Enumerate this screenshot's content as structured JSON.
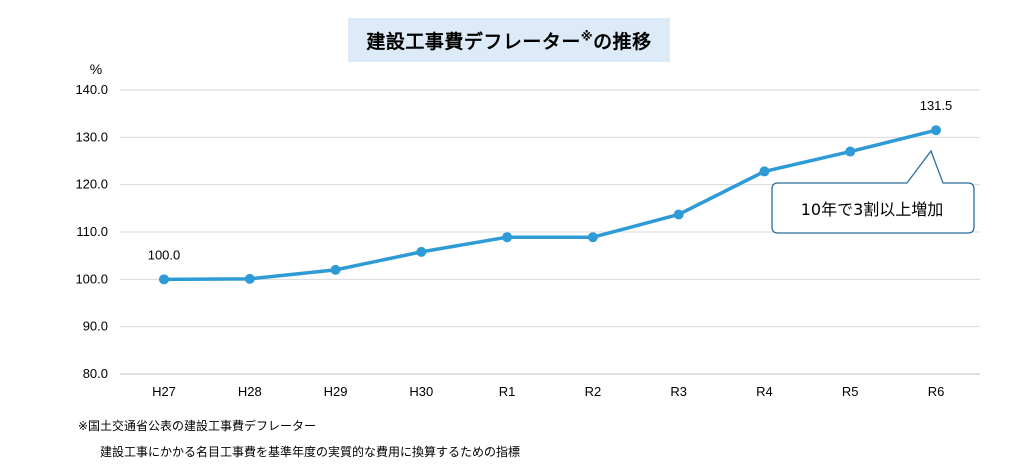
{
  "header": {
    "title_main": "建設工事費デフレーター",
    "title_mark": "※",
    "title_tail": "の推移"
  },
  "colors": {
    "line": "#2e9bd6",
    "title_bg": "#dcebf7",
    "grid": "#d9d9d9",
    "callout_border": "#2b6f9e"
  },
  "callout": {
    "text": "10年で3割以上増加"
  },
  "notes": {
    "line1": "※国土交通省公表の建設工事費デフレーター",
    "line2": "建設工事にかかる名目工事費を基準年度の実質的な費用に換算するための指標"
  },
  "chart_data": {
    "type": "line",
    "title": "建設工事費デフレーター※の推移",
    "ylabel": "%",
    "xlabel": "",
    "ylim": [
      80,
      140
    ],
    "yticks": [
      "80.0",
      "90.0",
      "100.0",
      "110.0",
      "120.0",
      "130.0",
      "140.0"
    ],
    "categories": [
      "H27",
      "H28",
      "H29",
      "H30",
      "R1",
      "R2",
      "R3",
      "R4",
      "R5",
      "R6"
    ],
    "series": [
      {
        "values": [
          100.0,
          100.1,
          102.0,
          105.8,
          108.9,
          108.9,
          113.7,
          122.8,
          127.0,
          131.5
        ]
      }
    ],
    "data_labels": [
      {
        "index": 0,
        "text": "100.0"
      },
      {
        "index": 9,
        "text": "131.5"
      }
    ],
    "grid": true,
    "legend": "none"
  }
}
